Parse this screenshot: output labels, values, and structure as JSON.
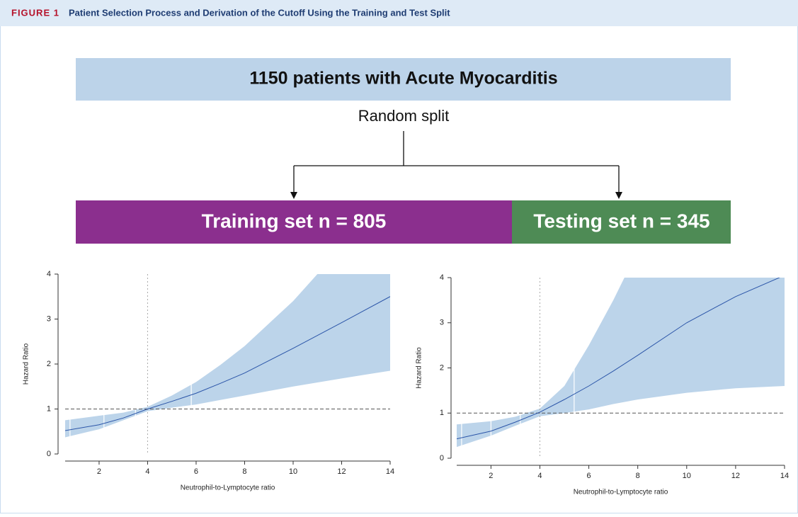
{
  "header": {
    "label": "FIGURE 1",
    "title": "Patient Selection Process and Derivation of the Cutoff Using the Training and Test Split"
  },
  "flow": {
    "root": "1150 patients with Acute Myocarditis",
    "split": "Random split",
    "left": "Training set n = 805",
    "right": "Testing set n = 345"
  },
  "chart_data": [
    {
      "type": "line",
      "xlabel": "Neutrophil-to-Lymptocyte ratio",
      "ylabel": "Hazard Ratio",
      "x": [
        0.6,
        2,
        3,
        4,
        5,
        6,
        7,
        8,
        10,
        12,
        14
      ],
      "series": [
        {
          "color": "#2b55a8",
          "values": [
            0.52,
            0.65,
            0.8,
            1.0,
            1.17,
            1.35,
            1.57,
            1.8,
            2.35,
            2.92,
            3.5
          ]
        }
      ],
      "ci_upper": [
        0.75,
        0.85,
        0.92,
        1.05,
        1.3,
        1.6,
        1.98,
        2.4,
        3.4,
        4.6,
        5.9
      ],
      "ci_lower": [
        0.37,
        0.55,
        0.75,
        0.95,
        1.03,
        1.1,
        1.2,
        1.3,
        1.5,
        1.68,
        1.85
      ],
      "band_color": "#bcd4ea",
      "rug": [
        0.8,
        2.2,
        3.5,
        5.8
      ],
      "vline": 4,
      "hline": 1,
      "xlim": [
        0.6,
        14
      ],
      "ylim": [
        0,
        4
      ],
      "xticks": [
        2,
        4,
        6,
        8,
        10,
        12,
        14
      ],
      "yticks": [
        0,
        1,
        2,
        3,
        4
      ]
    },
    {
      "type": "line",
      "xlabel": "Neutrophil-to-Lymptocyte ratio",
      "ylabel": "Hazard Ratio",
      "x": [
        0.6,
        2,
        3,
        4,
        5,
        6,
        7,
        8,
        10,
        12,
        14
      ],
      "series": [
        {
          "color": "#2b55a8",
          "values": [
            0.43,
            0.6,
            0.8,
            1.02,
            1.3,
            1.6,
            1.93,
            2.28,
            3.0,
            3.58,
            4.05
          ]
        }
      ],
      "ci_upper": [
        0.75,
        0.82,
        0.92,
        1.1,
        1.6,
        2.5,
        3.5,
        4.6,
        6.5,
        8,
        9
      ],
      "ci_lower": [
        0.25,
        0.5,
        0.72,
        0.93,
        1.0,
        1.08,
        1.2,
        1.3,
        1.45,
        1.55,
        1.6
      ],
      "band_color": "#bcd4ea",
      "rug": [
        0.8,
        2,
        3.2,
        5.4
      ],
      "vline": 4,
      "hline": 1,
      "xlim": [
        0.6,
        14
      ],
      "ylim": [
        0,
        4
      ],
      "xticks": [
        2,
        4,
        6,
        8,
        10,
        12,
        14
      ],
      "yticks": [
        0,
        1,
        2,
        3,
        4
      ]
    }
  ]
}
